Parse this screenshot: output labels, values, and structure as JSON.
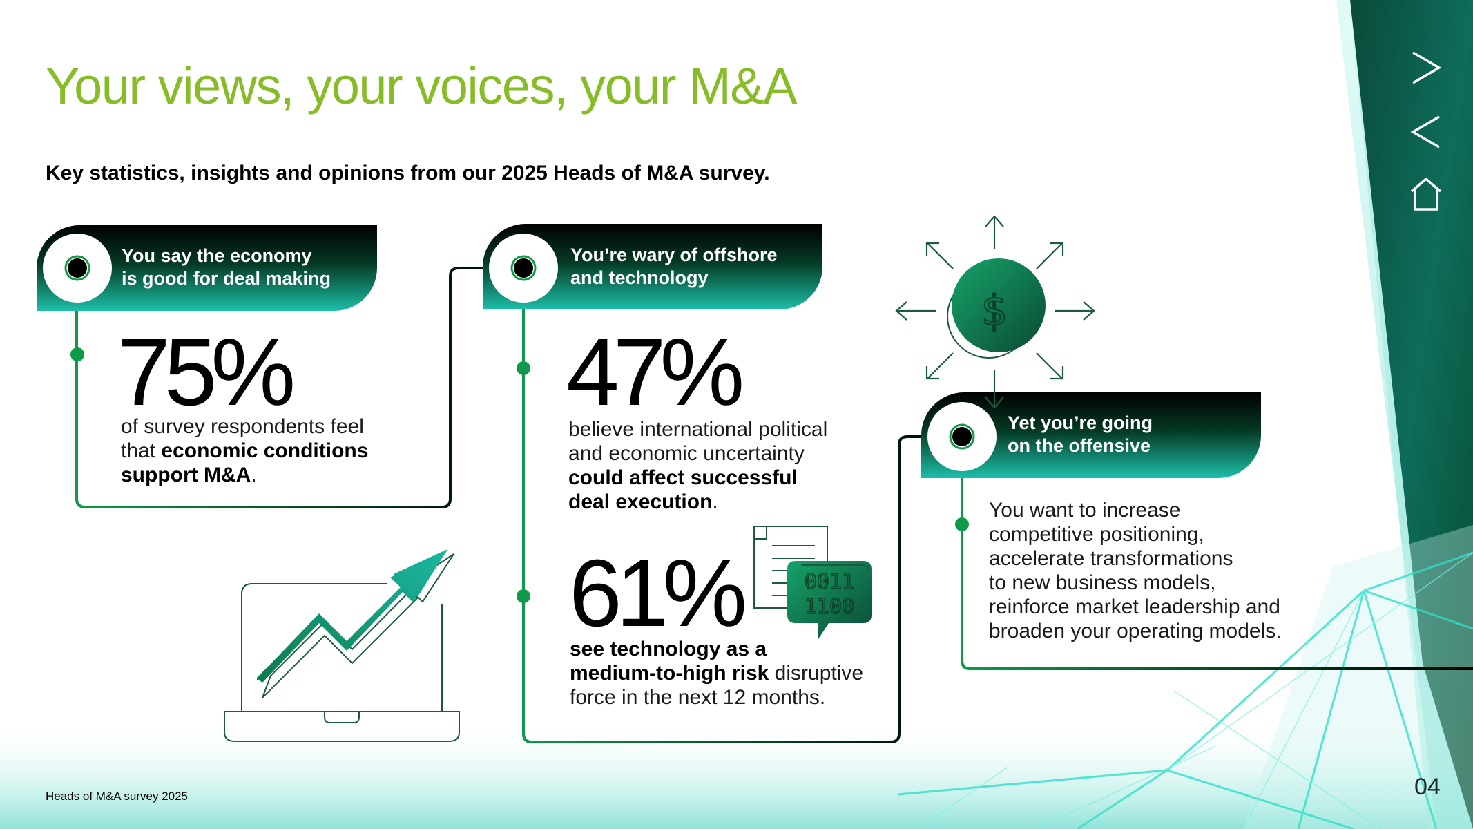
{
  "title": "Your views, your voices, your M&A",
  "subtitle": "Key statistics, insights and opinions from our 2025 Heads of M&A survey.",
  "cards": [
    {
      "header_line1": "You say the economy",
      "header_line2": "is good for deal making"
    },
    {
      "header_line1": "You’re wary of offshore",
      "header_line2": "and technology"
    },
    {
      "header_line1": "Yet you’re going",
      "header_line2": "on the offensive"
    }
  ],
  "stats": {
    "s1": {
      "value": "75%",
      "l1": "of survey respondents feel",
      "l2_plain": "that ",
      "l2_bold": "economic conditions",
      "l3_bold": "support M&A",
      "l3_plain": "."
    },
    "s2": {
      "value": "47%",
      "l1": "believe international political",
      "l2": "and economic uncertainty",
      "l3_bold": "could affect successful",
      "l4_bold": "deal execution",
      "l4_plain": "."
    },
    "s3": {
      "value": "61%",
      "l1_bold": "see technology as a",
      "l2_bold": "medium-to-high risk",
      "l2_plain": " disruptive",
      "l3": "force in the next 12 months."
    },
    "s4": {
      "l1": "You want to increase",
      "l2": "competitive positioning,",
      "l3": "accelerate transformations",
      "l4": "to new business models,",
      "l5": "reinforce market leadership and",
      "l6": "broaden your operating models."
    }
  },
  "icons": {
    "money": "dollar-coin-icon",
    "growth": "laptop-growth-chart-icon",
    "binary": "document-binary-chat-icon",
    "next": "chevron-right-icon",
    "prev": "chevron-left-icon",
    "home": "home-icon",
    "dollar_glyph": "$",
    "binary_row1": "0011",
    "binary_row2": "1100"
  },
  "footer": "Heads of M&A survey 2025",
  "page_number": "04",
  "colors": {
    "accent_green": "#86bc25",
    "line_green": "#0e9a48",
    "teal": "#1bc6b0",
    "dark": "#000000"
  }
}
